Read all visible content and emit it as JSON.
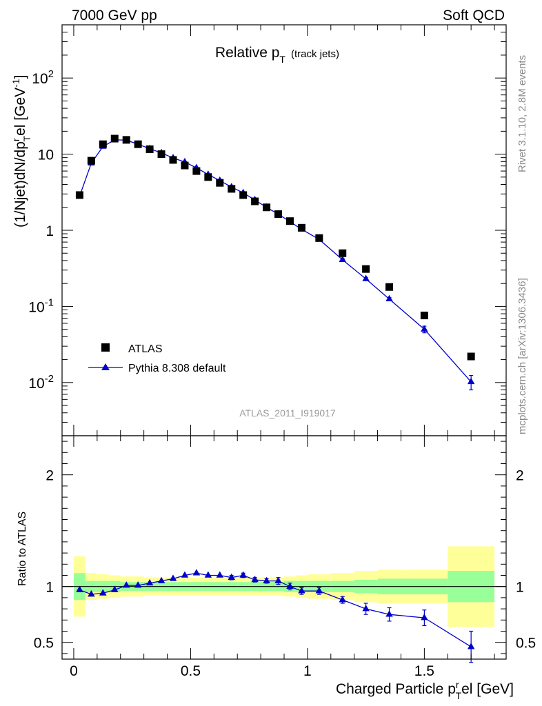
{
  "header": {
    "energy": "7000 GeV pp",
    "process": "Soft QCD",
    "title_main": "Relative p",
    "title_sub": "T",
    "title_note": "(track jets)",
    "analysis_id": "ATLAS_2011_I919017",
    "side_top": "Rivet 3.1.10,  2.8M events",
    "side_bottom": "mcplots.cern.ch [arXiv:1306.3436]"
  },
  "colors": {
    "mc": "#0000cc",
    "data": "#000000",
    "band_inner": "#99ff99",
    "band_outer": "#ffff99"
  },
  "chart_data": [
    {
      "type": "scatter",
      "panel": "main",
      "ylabel": "(1/Njet)dN/dp^r_T el [GeV^-1]",
      "yscale": "log",
      "ylim": [
        0.002,
        500
      ],
      "xlim": [
        -0.05,
        1.85
      ],
      "y_ticks": [
        {
          "v": 0.01,
          "base": "10",
          "exp": "-2"
        },
        {
          "v": 0.1,
          "base": "10",
          "exp": "-1"
        },
        {
          "v": 1,
          "base": "1",
          "exp": ""
        },
        {
          "v": 10,
          "base": "10",
          "exp": ""
        },
        {
          "v": 100,
          "base": "10",
          "exp": "2"
        }
      ],
      "legend": {
        "position": "bottom-left",
        "entries": [
          "ATLAS",
          "Pythia 8.308 default"
        ]
      },
      "series": [
        {
          "name": "ATLAS",
          "x": [
            0.025,
            0.075,
            0.125,
            0.175,
            0.225,
            0.275,
            0.325,
            0.375,
            0.425,
            0.475,
            0.525,
            0.575,
            0.625,
            0.675,
            0.725,
            0.775,
            0.825,
            0.875,
            0.925,
            0.975,
            1.05,
            1.15,
            1.25,
            1.35,
            1.5,
            1.7
          ],
          "y": [
            2.9,
            8.2,
            13.5,
            16.0,
            15.4,
            13.5,
            11.6,
            10.0,
            8.4,
            7.1,
            6.0,
            5.0,
            4.2,
            3.5,
            2.9,
            2.4,
            2.0,
            1.63,
            1.32,
            1.08,
            0.79,
            0.5,
            0.31,
            0.18,
            0.076,
            0.022
          ]
        },
        {
          "name": "Pythia 8.308 default",
          "x": [
            0.025,
            0.075,
            0.125,
            0.175,
            0.225,
            0.275,
            0.325,
            0.375,
            0.425,
            0.475,
            0.525,
            0.575,
            0.625,
            0.675,
            0.725,
            0.775,
            0.825,
            0.875,
            0.925,
            0.975,
            1.05,
            1.15,
            1.25,
            1.35,
            1.5,
            1.7
          ],
          "y": [
            2.8,
            7.6,
            12.6,
            15.4,
            15.3,
            13.5,
            11.8,
            10.4,
            8.9,
            7.9,
            6.6,
            5.4,
            4.5,
            3.7,
            3.1,
            2.5,
            2.0,
            1.63,
            1.3,
            1.03,
            0.76,
            0.41,
            0.23,
            0.125,
            0.05,
            0.0102
          ],
          "yerr": [
            0,
            0,
            0,
            0,
            0,
            0,
            0,
            0,
            0,
            0,
            0,
            0,
            0,
            0,
            0,
            0,
            0,
            0,
            0,
            0,
            0,
            0.015,
            0.01,
            0.006,
            0.005,
            0.0022
          ]
        }
      ]
    },
    {
      "type": "scatter",
      "panel": "ratio",
      "xlabel": "Charged Particle p^r_T el [GeV]",
      "ylabel": "Ratio to ATLAS",
      "ylim": [
        0.35,
        2.35
      ],
      "xlim": [
        -0.05,
        1.85
      ],
      "x_ticks": [
        "0",
        "0.5",
        "1",
        "1.5"
      ],
      "y_ticks": [
        "0.5",
        "1",
        "2"
      ],
      "bands": {
        "edges": [
          0,
          0.05,
          0.1,
          0.15,
          0.2,
          0.25,
          0.3,
          0.35,
          0.4,
          0.45,
          0.5,
          0.55,
          0.6,
          0.65,
          0.7,
          0.75,
          0.8,
          0.85,
          0.9,
          0.95,
          1.0,
          1.1,
          1.2,
          1.3,
          1.4,
          1.6,
          1.8
        ],
        "inner": [
          0.12,
          0.05,
          0.05,
          0.05,
          0.04,
          0.04,
          0.04,
          0.04,
          0.04,
          0.04,
          0.04,
          0.04,
          0.04,
          0.04,
          0.04,
          0.04,
          0.04,
          0.04,
          0.05,
          0.05,
          0.05,
          0.05,
          0.06,
          0.07,
          0.07,
          0.14
        ],
        "outer": [
          0.27,
          0.12,
          0.11,
          0.1,
          0.09,
          0.09,
          0.08,
          0.08,
          0.08,
          0.08,
          0.08,
          0.08,
          0.08,
          0.08,
          0.08,
          0.08,
          0.08,
          0.08,
          0.09,
          0.1,
          0.11,
          0.12,
          0.14,
          0.15,
          0.15,
          0.36
        ]
      },
      "series": [
        {
          "name": "Pythia 8.308 default",
          "x": [
            0.025,
            0.075,
            0.125,
            0.175,
            0.225,
            0.275,
            0.325,
            0.375,
            0.425,
            0.475,
            0.525,
            0.575,
            0.625,
            0.675,
            0.725,
            0.775,
            0.825,
            0.875,
            0.925,
            0.975,
            1.05,
            1.15,
            1.25,
            1.35,
            1.5,
            1.7
          ],
          "y": [
            0.97,
            0.93,
            0.94,
            0.97,
            1.01,
            1.01,
            1.03,
            1.05,
            1.07,
            1.1,
            1.12,
            1.1,
            1.1,
            1.08,
            1.1,
            1.06,
            1.05,
            1.05,
            1.0,
            0.96,
            0.96,
            0.88,
            0.8,
            0.75,
            0.72,
            0.46
          ],
          "yerr": [
            0.01,
            0.01,
            0.01,
            0.01,
            0.01,
            0.01,
            0.01,
            0.01,
            0.01,
            0.01,
            0.01,
            0.01,
            0.01,
            0.02,
            0.02,
            0.02,
            0.02,
            0.03,
            0.03,
            0.03,
            0.03,
            0.03,
            0.05,
            0.06,
            0.07,
            0.14
          ]
        }
      ]
    }
  ]
}
